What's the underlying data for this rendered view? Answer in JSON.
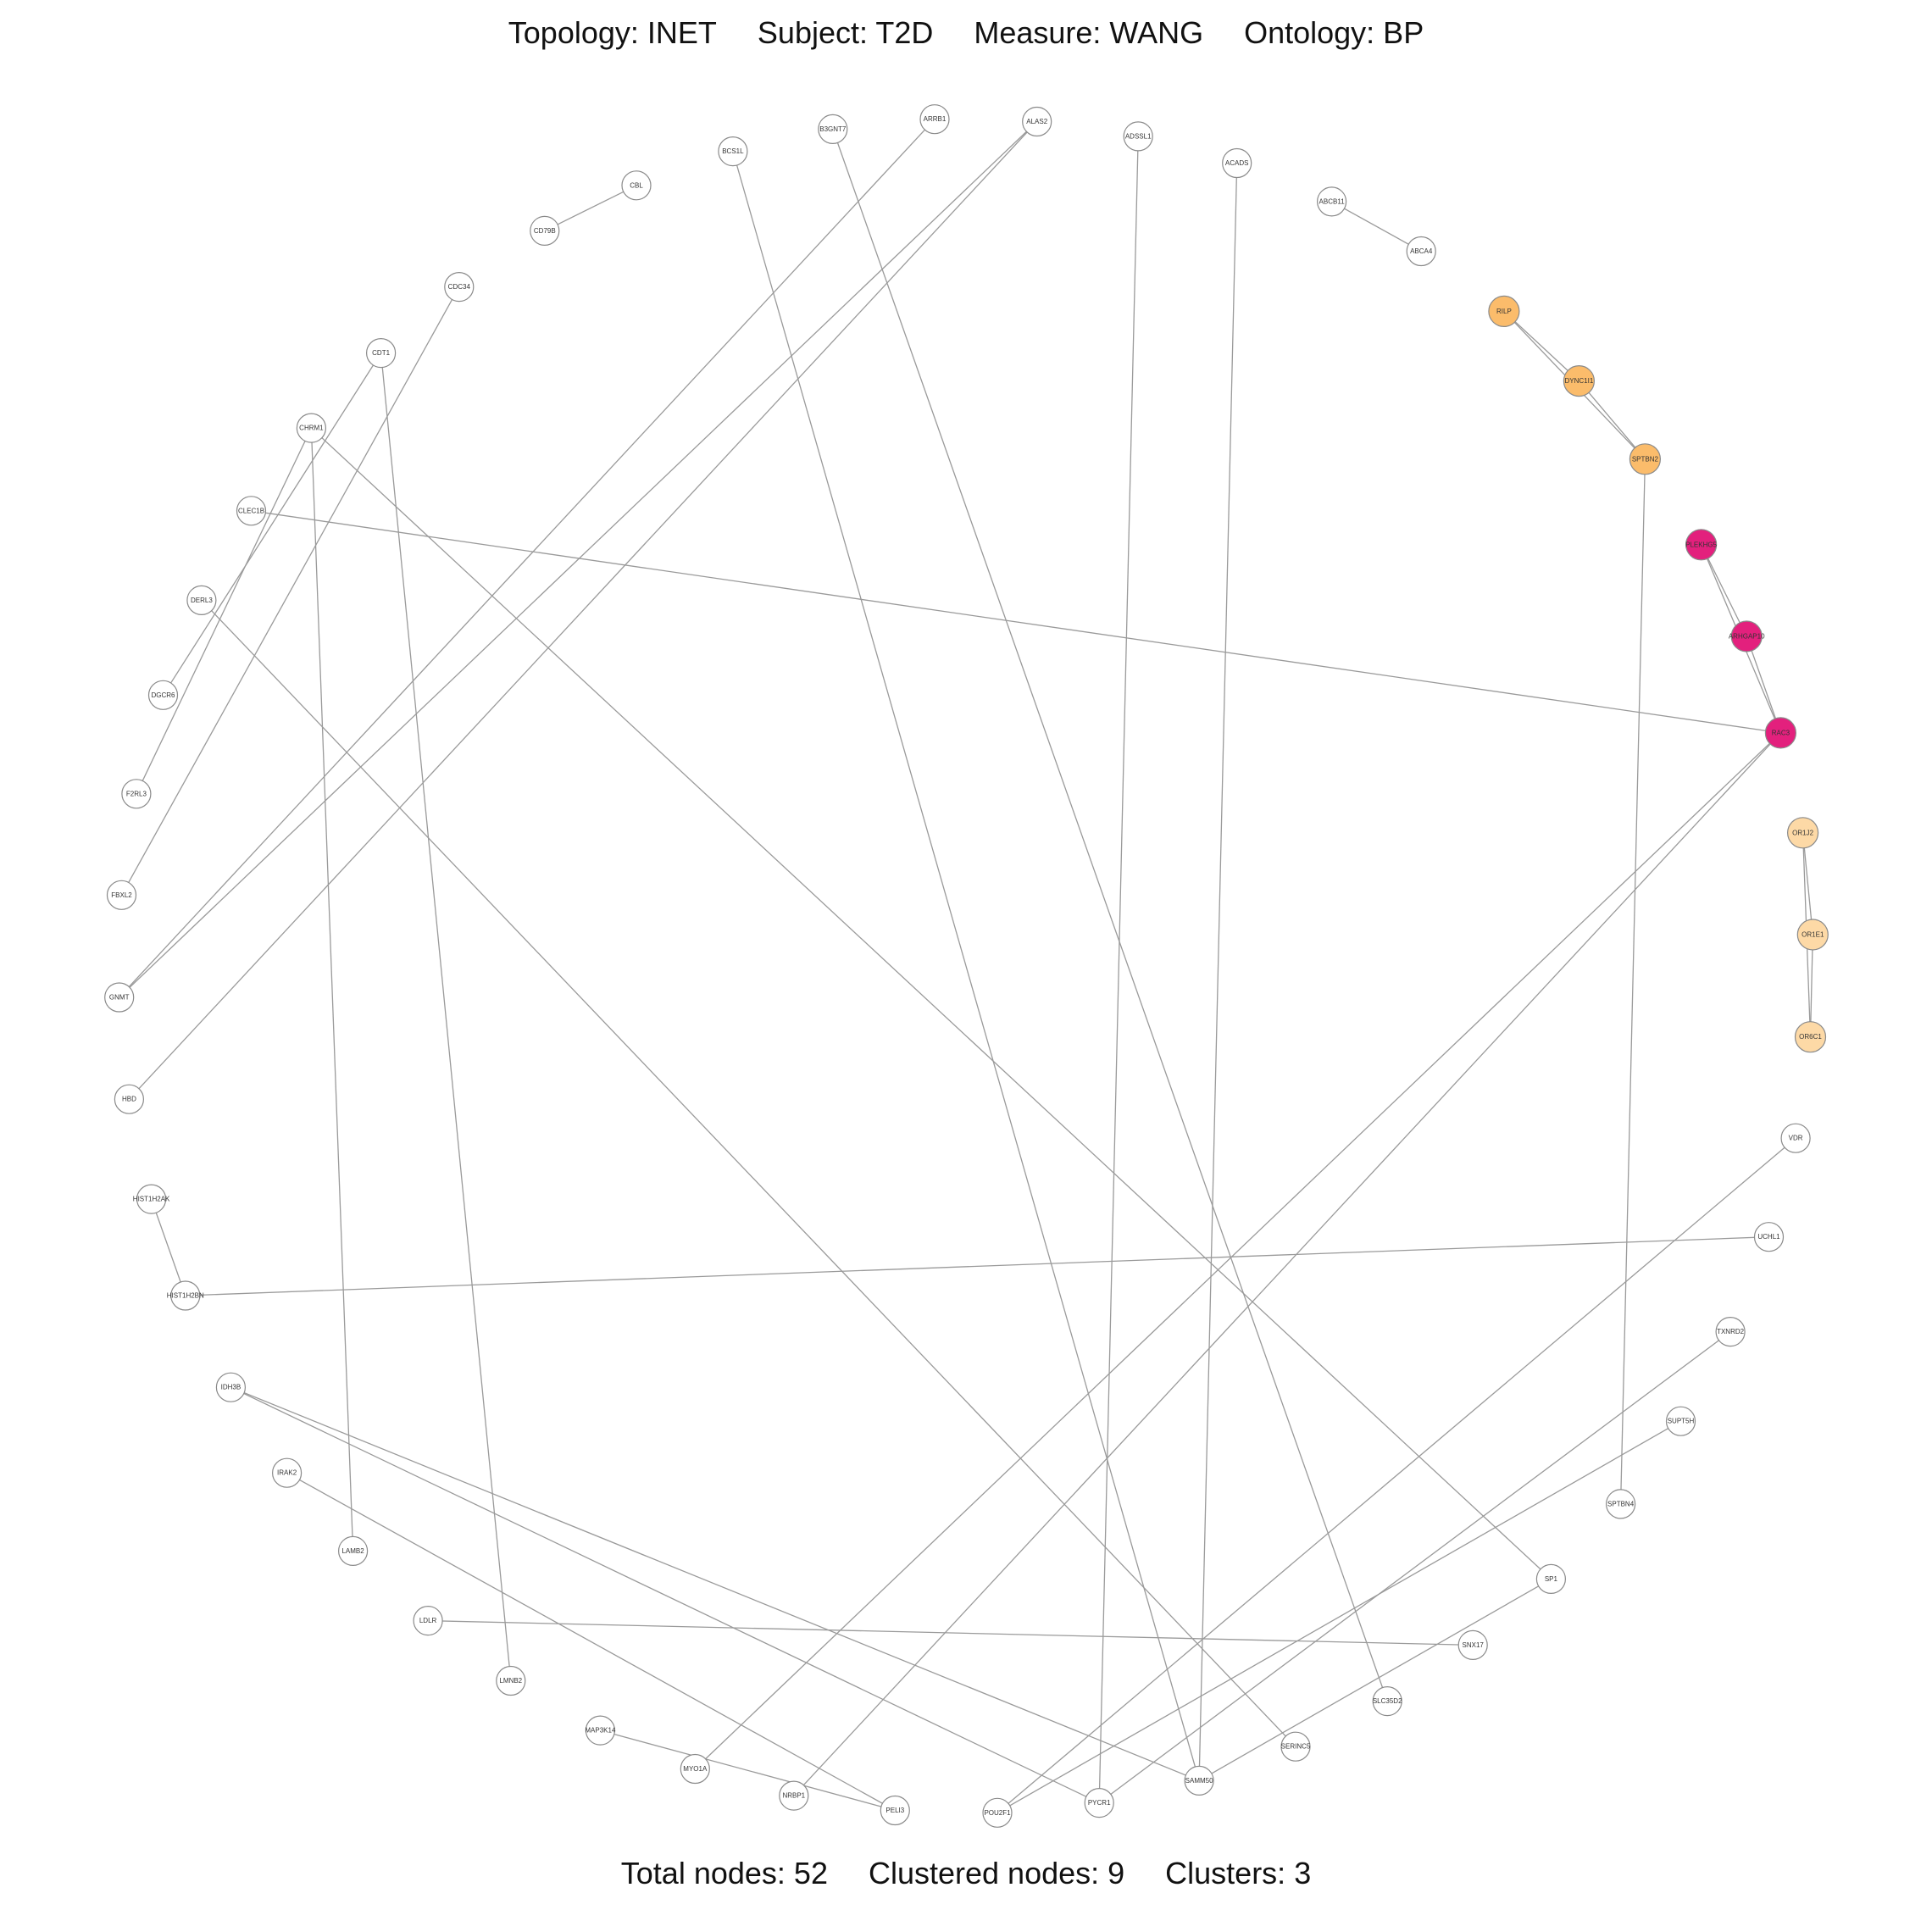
{
  "header": {
    "topology": "Topology: INET",
    "subject": "Subject: T2D",
    "measure": "Measure: WANG",
    "ontology": "Ontology: BP"
  },
  "footer": {
    "total_nodes": "Total nodes: 52",
    "clustered_nodes": "Clustered nodes: 9",
    "clusters": "Clusters: 3"
  },
  "colors": {
    "default_node": "#ffffff",
    "cluster_orange": "#fbbc6b",
    "cluster_magenta": "#e3207d",
    "cluster_peach": "#fdd9a6",
    "edge": "#9a9a9a"
  },
  "nodes": [
    {
      "id": "ALAS2",
      "cluster": null
    },
    {
      "id": "ADSSL1",
      "cluster": null
    },
    {
      "id": "ACADS",
      "cluster": null
    },
    {
      "id": "ABCB11",
      "cluster": null
    },
    {
      "id": "ABCA4",
      "cluster": null
    },
    {
      "id": "RILP",
      "cluster": "orange"
    },
    {
      "id": "DYNC1I1",
      "cluster": "orange"
    },
    {
      "id": "SPTBN2",
      "cluster": "orange"
    },
    {
      "id": "PLEKHG5",
      "cluster": "magenta"
    },
    {
      "id": "ARHGAP10",
      "cluster": "magenta"
    },
    {
      "id": "RAC3",
      "cluster": "magenta"
    },
    {
      "id": "OR1J2",
      "cluster": "peach"
    },
    {
      "id": "OR1E1",
      "cluster": "peach"
    },
    {
      "id": "OR6C1",
      "cluster": "peach"
    },
    {
      "id": "VDR",
      "cluster": null
    },
    {
      "id": "UCHL1",
      "cluster": null
    },
    {
      "id": "TXNRD2",
      "cluster": null
    },
    {
      "id": "SUPT5H",
      "cluster": null
    },
    {
      "id": "SPTBN4",
      "cluster": null
    },
    {
      "id": "SP1",
      "cluster": null
    },
    {
      "id": "SNX17",
      "cluster": null
    },
    {
      "id": "SLC35D2",
      "cluster": null
    },
    {
      "id": "SERINC5",
      "cluster": null
    },
    {
      "id": "SAMM50",
      "cluster": null
    },
    {
      "id": "PYCR1",
      "cluster": null
    },
    {
      "id": "POU2F1",
      "cluster": null
    },
    {
      "id": "PELI3",
      "cluster": null
    },
    {
      "id": "NRBP1",
      "cluster": null
    },
    {
      "id": "MYO1A",
      "cluster": null
    },
    {
      "id": "MAP3K14",
      "cluster": null
    },
    {
      "id": "LMNB2",
      "cluster": null
    },
    {
      "id": "LDLR",
      "cluster": null
    },
    {
      "id": "LAMB2",
      "cluster": null
    },
    {
      "id": "IRAK2",
      "cluster": null
    },
    {
      "id": "IDH3B",
      "cluster": null
    },
    {
      "id": "HIST1H2BN",
      "cluster": null
    },
    {
      "id": "HIST1H2AK",
      "cluster": null
    },
    {
      "id": "HBD",
      "cluster": null
    },
    {
      "id": "GNMT",
      "cluster": null
    },
    {
      "id": "FBXL2",
      "cluster": null
    },
    {
      "id": "F2RL3",
      "cluster": null
    },
    {
      "id": "DGCR6",
      "cluster": null
    },
    {
      "id": "DERL3",
      "cluster": null
    },
    {
      "id": "CLEC1B",
      "cluster": null
    },
    {
      "id": "CHRM1",
      "cluster": null
    },
    {
      "id": "CDT1",
      "cluster": null
    },
    {
      "id": "CDC34",
      "cluster": null
    },
    {
      "id": "CD79B",
      "cluster": null
    },
    {
      "id": "CBL",
      "cluster": null
    },
    {
      "id": "BCS1L",
      "cluster": null
    },
    {
      "id": "B3GNT7",
      "cluster": null
    },
    {
      "id": "ARRB1",
      "cluster": null
    }
  ],
  "edges": [
    [
      "CBL",
      "CD79B"
    ],
    [
      "ABCB11",
      "ABCA4"
    ],
    [
      "RILP",
      "DYNC1I1"
    ],
    [
      "RILP",
      "SPTBN2"
    ],
    [
      "DYNC1I1",
      "SPTBN2"
    ],
    [
      "PLEKHG5",
      "ARHGAP10"
    ],
    [
      "PLEKHG5",
      "RAC3"
    ],
    [
      "ARHGAP10",
      "RAC3"
    ],
    [
      "OR1J2",
      "OR1E1"
    ],
    [
      "OR1J2",
      "OR6C1"
    ],
    [
      "OR1E1",
      "OR6C1"
    ],
    [
      "HIST1H2AK",
      "HIST1H2BN"
    ],
    [
      "HIST1H2BN",
      "UCHL1"
    ],
    [
      "CLEC1B",
      "RAC3"
    ],
    [
      "RAC3",
      "MYO1A"
    ],
    [
      "RAC3",
      "NRBP1"
    ],
    [
      "ARRB1",
      "GNMT"
    ],
    [
      "ALAS2",
      "GNMT"
    ],
    [
      "ALAS2",
      "HBD"
    ],
    [
      "B3GNT7",
      "SLC35D2"
    ],
    [
      "BCS1L",
      "SAMM50"
    ],
    [
      "ADSSL1",
      "PYCR1"
    ],
    [
      "ACADS",
      "SAMM50"
    ],
    [
      "CDC34",
      "FBXL2"
    ],
    [
      "CDT1",
      "DGCR6"
    ],
    [
      "CDT1",
      "LMNB2"
    ],
    [
      "CHRM1",
      "F2RL3"
    ],
    [
      "CHRM1",
      "LAMB2"
    ],
    [
      "CHRM1",
      "SP1"
    ],
    [
      "DERL3",
      "SERINC5"
    ],
    [
      "SPTBN2",
      "SPTBN4"
    ],
    [
      "VDR",
      "POU2F1"
    ],
    [
      "TXNRD2",
      "PYCR1"
    ],
    [
      "SUPT5H",
      "POU2F1"
    ],
    [
      "SP1",
      "SAMM50"
    ],
    [
      "SNX17",
      "LDLR"
    ],
    [
      "IDH3B",
      "SAMM50"
    ],
    [
      "IDH3B",
      "PYCR1"
    ],
    [
      "IRAK2",
      "PELI3"
    ],
    [
      "MAP3K14",
      "PELI3"
    ]
  ]
}
